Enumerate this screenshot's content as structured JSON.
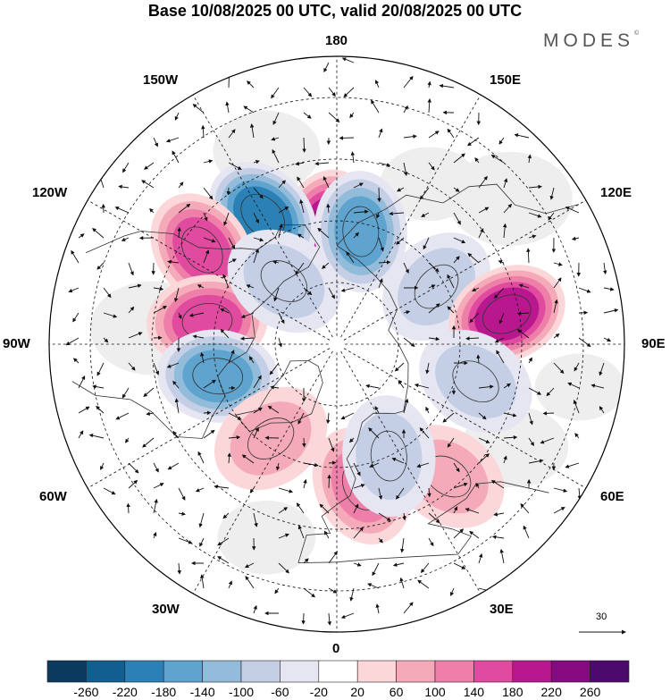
{
  "title": "Base 10/08/2025 00 UTC, valid 20/08/2025 00 UTC",
  "brand": "MODES",
  "brand_mark": "©",
  "longitude_labels": {
    "top": "180",
    "bottom": "0",
    "left": "90W",
    "right": "90E",
    "upper_left_1": "150W",
    "upper_left_2": "120W",
    "lower_left_1": "60W",
    "lower_left_2": "30W",
    "upper_right_1": "150E",
    "upper_right_2": "120E",
    "lower_right_1": "60E",
    "lower_right_2": "30E"
  },
  "vector_scale_label": "30",
  "colorbar": {
    "ticks": [
      "-260",
      "-220",
      "-180",
      "-140",
      "-100",
      "-60",
      "-20",
      "20",
      "60",
      "100",
      "140",
      "180",
      "220",
      "260"
    ],
    "colors": [
      "#0b3a5e",
      "#105f8f",
      "#2b81b5",
      "#5fa3cf",
      "#93bcdb",
      "#c4cfe6",
      "#e6e6f3",
      "#ffffff",
      "#fbd7da",
      "#f4aab9",
      "#ee7fa9",
      "#e04a9f",
      "#b8178e",
      "#860a80",
      "#4b0a6c"
    ]
  },
  "anomaly_centers": [
    {
      "lon": -175,
      "lat": 62,
      "value": 190
    },
    {
      "lon": 168,
      "lat": 62,
      "value": -170
    },
    {
      "lon": -150,
      "lat": 54,
      "value": -180
    },
    {
      "lon": -125,
      "lat": 50,
      "value": 150
    },
    {
      "lon": -100,
      "lat": 58,
      "value": 160
    },
    {
      "lon": -75,
      "lat": 60,
      "value": -170
    },
    {
      "lon": 120,
      "lat": 62,
      "value": -80
    },
    {
      "lon": 100,
      "lat": 48,
      "value": 200
    },
    {
      "lon": 75,
      "lat": 55,
      "value": -80
    },
    {
      "lon": 40,
      "lat": 48,
      "value": 80
    },
    {
      "lon": 10,
      "lat": 55,
      "value": 120
    },
    {
      "lon": 25,
      "lat": 60,
      "value": -80
    },
    {
      "lon": -35,
      "lat": 62,
      "value": 80
    },
    {
      "lon": -140,
      "lat": 70,
      "value": -60
    }
  ]
}
